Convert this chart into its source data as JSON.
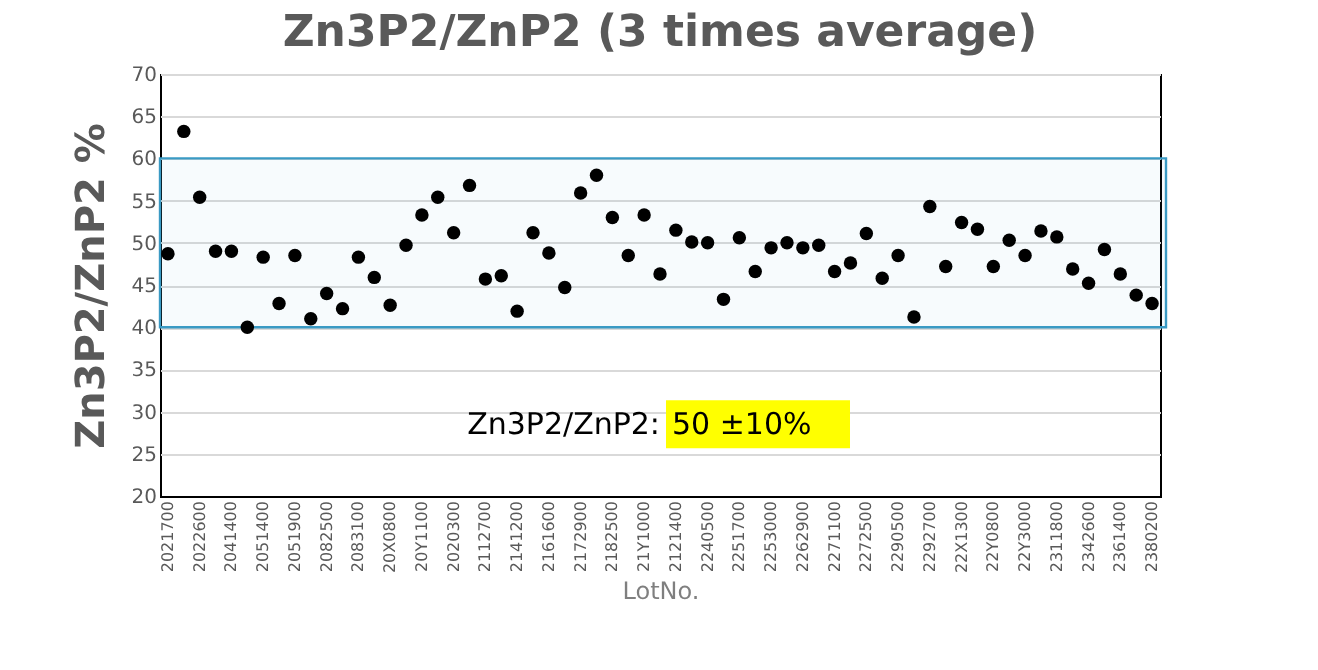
{
  "chart_data": {
    "type": "scatter",
    "title": "Zn3P2/ZnP2 (3 times average)",
    "xlabel": "LotNo.",
    "ylabel": "Zn3P2/ZnP2 %",
    "categories": [
      "2021700",
      null,
      "2022600",
      null,
      "2041400",
      null,
      "2051400",
      null,
      "2051900",
      null,
      "2082500",
      null,
      "2083100",
      null,
      "20X0800",
      null,
      "20Y1100",
      null,
      "2020300",
      null,
      "2112700",
      null,
      "2141200",
      null,
      "2161600",
      null,
      "2172900",
      null,
      "2182500",
      null,
      "21Y1000",
      null,
      "2121400",
      null,
      "2240500",
      null,
      "2251700",
      null,
      "2253000",
      null,
      "2262900",
      null,
      "2271100",
      null,
      "2272500",
      null,
      "2290500",
      null,
      "2292700",
      null,
      "22X1300",
      null,
      "22Y0800",
      null,
      "22Y3000",
      null,
      "2311800",
      null,
      "2342600",
      null,
      "2361400",
      null,
      "2380200"
    ],
    "series": [
      {
        "color": "#000000",
        "values": [
          48.7,
          63.2,
          55.4,
          49,
          49,
          40,
          48.3,
          42.8,
          48.5,
          41,
          44,
          42.2,
          48.3,
          45.9,
          42.6,
          49.7,
          53.3,
          55.4,
          51.2,
          56.8,
          45.7,
          46.1,
          41.9,
          51.2,
          48.8,
          44.7,
          55.9,
          58,
          53,
          48.5,
          53.3,
          46.3,
          51.5,
          50.1,
          50,
          43.3,
          50.6,
          46.6,
          49.4,
          50,
          49.4,
          49.7,
          46.6,
          47.6,
          51.1,
          45.8,
          48.5,
          41.2,
          54.3,
          47.2,
          52.4,
          51.6,
          47.2,
          50.3,
          48.5,
          51.4,
          50.7,
          46.9,
          45.2,
          49.2,
          46.3,
          43.8,
          42.8
        ]
      }
    ],
    "ylim": [
      20,
      70
    ],
    "yticks": [
      20,
      25,
      30,
      35,
      40,
      45,
      50,
      55,
      60,
      65,
      70
    ],
    "grid": "y",
    "marker": "circle",
    "bands": [
      {
        "axis": "y",
        "from": 40,
        "to": 60,
        "color": "#3a9ac4"
      }
    ],
    "annotations": [
      "Zn3P2/ZnP2:",
      "50 ±10%"
    ]
  }
}
